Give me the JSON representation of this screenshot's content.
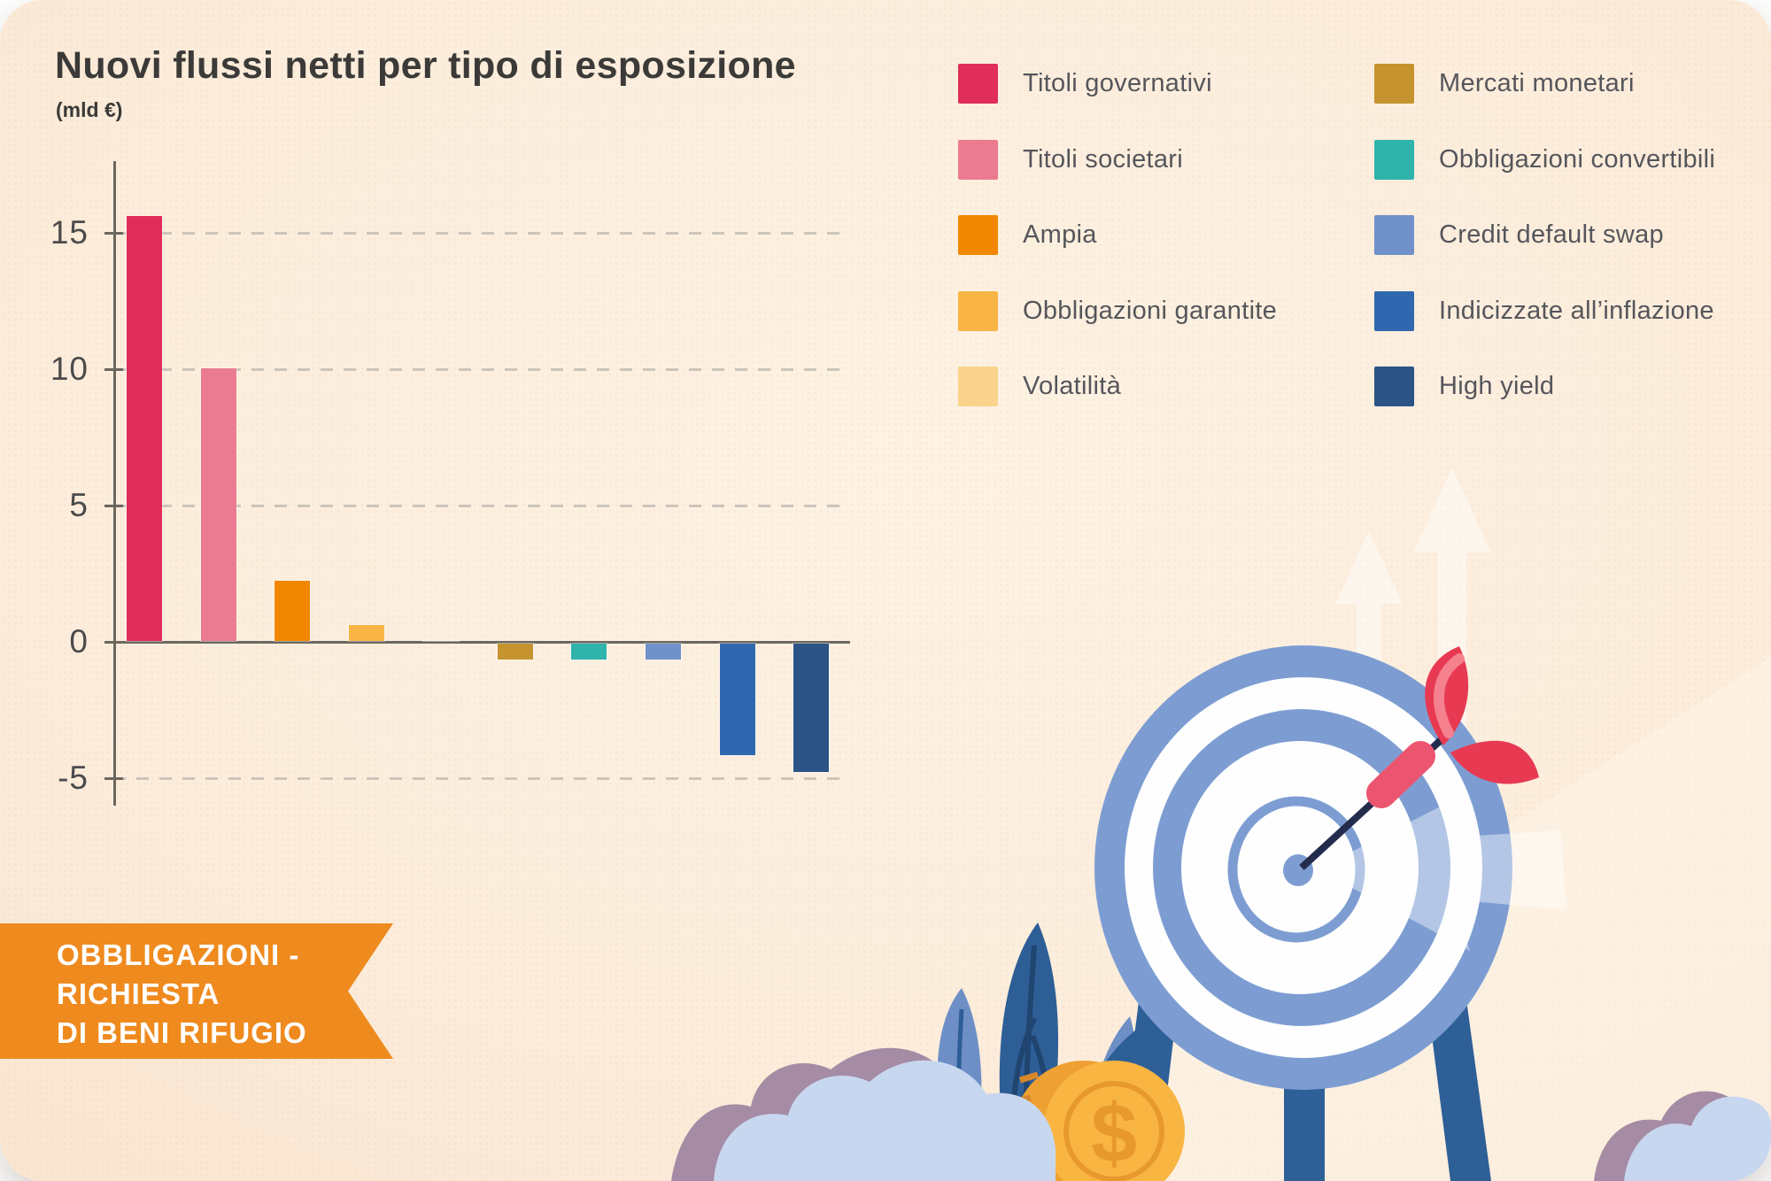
{
  "header": {
    "title": "Nuovi flussi netti per tipo di esposizione",
    "subtitle": "(mld €)",
    "title_color": "#3B3A38"
  },
  "chart_data": {
    "type": "bar",
    "title": "Nuovi flussi netti per tipo di esposizione",
    "ylabel": "(mld €)",
    "xlabel": "",
    "categories": [
      "Titoli governativi",
      "Titoli societari",
      "Ampia",
      "Obbligazioni garantite",
      "Volatilità",
      "Mercati monetari",
      "Obbligazioni convertibili",
      "Credit default swap",
      "Indicizzate all’inflazione",
      "High yield"
    ],
    "values": [
      15.6,
      10,
      2.2,
      0.6,
      0,
      -0.6,
      -0.6,
      -0.6,
      -4.1,
      -4.7
    ],
    "colors": [
      "#E02D5A",
      "#EA7B90",
      "#F18700",
      "#F8B545",
      "#FAD48C",
      "#C6942F",
      "#2FB3AB",
      "#7191CB",
      "#3068AF",
      "#2B5385"
    ],
    "yticks": [
      15,
      10,
      5,
      0,
      -5
    ],
    "ylim": [
      -6,
      17.5
    ],
    "grid": "dashed-horizontal",
    "legend_position": "top-right-two-columns",
    "axis_color": "#6C675F",
    "grid_color": "#CDC5BA",
    "tick_label_color": "#4B4B4B"
  },
  "legend": {
    "text_color": "#55565B",
    "columns": [
      [
        {
          "label": "Titoli governativi",
          "color": "#E02D5A"
        },
        {
          "label": "Titoli societari",
          "color": "#EA7B90"
        },
        {
          "label": "Ampia",
          "color": "#F18700"
        },
        {
          "label": "Obbligazioni garantite",
          "color": "#F8B545"
        },
        {
          "label": "Volatilità",
          "color": "#FAD48C"
        }
      ],
      [
        {
          "label": "Mercati monetari",
          "color": "#C6942F"
        },
        {
          "label": "Obbligazioni convertibili",
          "color": "#2FB3AB"
        },
        {
          "label": "Credit default swap",
          "color": "#7191CB"
        },
        {
          "label": "Indicizzate all’inflazione",
          "color": "#3068AF"
        },
        {
          "label": "High yield",
          "color": "#2B5385"
        }
      ]
    ]
  },
  "ribbon": {
    "lines": [
      "OBBLIGAZIONI -",
      "RICHIESTA",
      "DI BENI RIFUGIO"
    ],
    "background": "#EF8A1E",
    "text_color": "#FFFFFF"
  },
  "illustration": {
    "description": "dartboard-target-with-dart-coin-plant-clouds",
    "colors": {
      "board_blue": "#7D9DD2",
      "ring_white": "#FEFEFE",
      "legs_blue": "#2F5F97",
      "needle_navy": "#232C4D",
      "dart_pink": "#EC5570",
      "dart_red": "#E73A52",
      "dart_highlight": "#F5808E",
      "coin_face": "#F9B542",
      "coin_edge": "#EFA032",
      "coin_detail": "#E8992B",
      "coin_ridge": "#D8882A",
      "plant_dark": "#2E5E96",
      "plant_vein": "#1F4570",
      "plant_light": "#6E8FC6",
      "cloud_fill": "#C8D7F0",
      "cloud_shadow": "#A58BA4",
      "faint_arrow": "#FFFFFF",
      "coin_symbol": "$"
    }
  }
}
